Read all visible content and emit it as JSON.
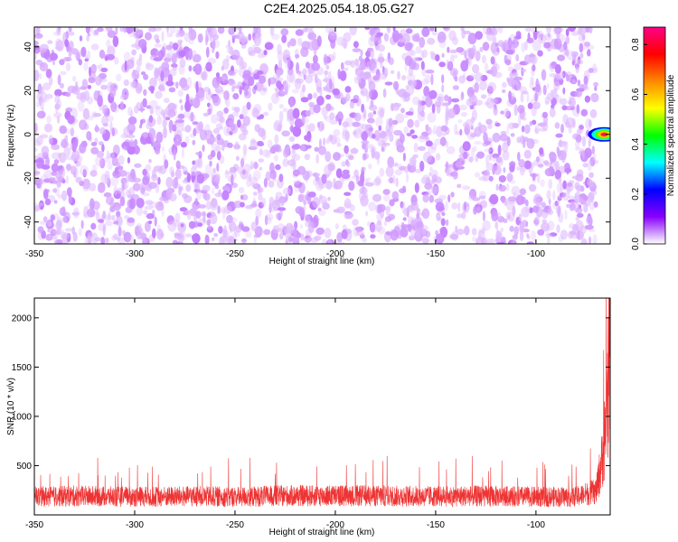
{
  "title": "C2E4.2025.054.18.05.G27",
  "chart_data": [
    {
      "type": "heatmap",
      "xlabel": "Height of straight line (km)",
      "ylabel": "Frequency (Hz)",
      "xlim": [
        -350,
        -63
      ],
      "ylim": [
        -50,
        49
      ],
      "x_ticks": [
        -350,
        -300,
        -250,
        -200,
        -150,
        -100
      ],
      "y_ticks": [
        -40,
        -20,
        0,
        20,
        40
      ],
      "background_speckle": {
        "x_range": [
          -350,
          -70
        ],
        "amplitude_range": [
          0.0,
          0.18
        ]
      },
      "hotspot": {
        "x": -66,
        "y": 0,
        "peak_amplitude": 0.87
      },
      "colorbar": {
        "label": "Normalized spectral amplitude",
        "range": [
          0.0,
          0.87
        ],
        "ticks": [
          0.0,
          0.2,
          0.4,
          0.6,
          0.8
        ],
        "colors": [
          "#ffffff",
          "#8800ff",
          "#0000ff",
          "#00ffff",
          "#00ff00",
          "#ffff00",
          "#ff8800",
          "#ff0000",
          "#ff0088"
        ]
      }
    },
    {
      "type": "line",
      "xlabel": "Height of straight line (km)",
      "ylabel": "SNR (10 * v/v)",
      "xlim": [
        -350,
        -63
      ],
      "ylim": [
        0,
        2200
      ],
      "x_ticks": [
        -350,
        -300,
        -250,
        -200,
        -150,
        -100
      ],
      "y_ticks": [
        500,
        1000,
        1500,
        2000
      ],
      "color": "#ee3333",
      "series": [
        {
          "x": [
            -350,
            -330,
            -300,
            -270,
            -250,
            -230,
            -200,
            -170,
            -150,
            -130,
            -100,
            -80,
            -70,
            -67,
            -65,
            -64,
            -63
          ],
          "y": [
            230,
            240,
            230,
            235,
            230,
            240,
            245,
            240,
            235,
            240,
            230,
            230,
            300,
            700,
            1200,
            1700,
            2200
          ]
        }
      ]
    }
  ]
}
